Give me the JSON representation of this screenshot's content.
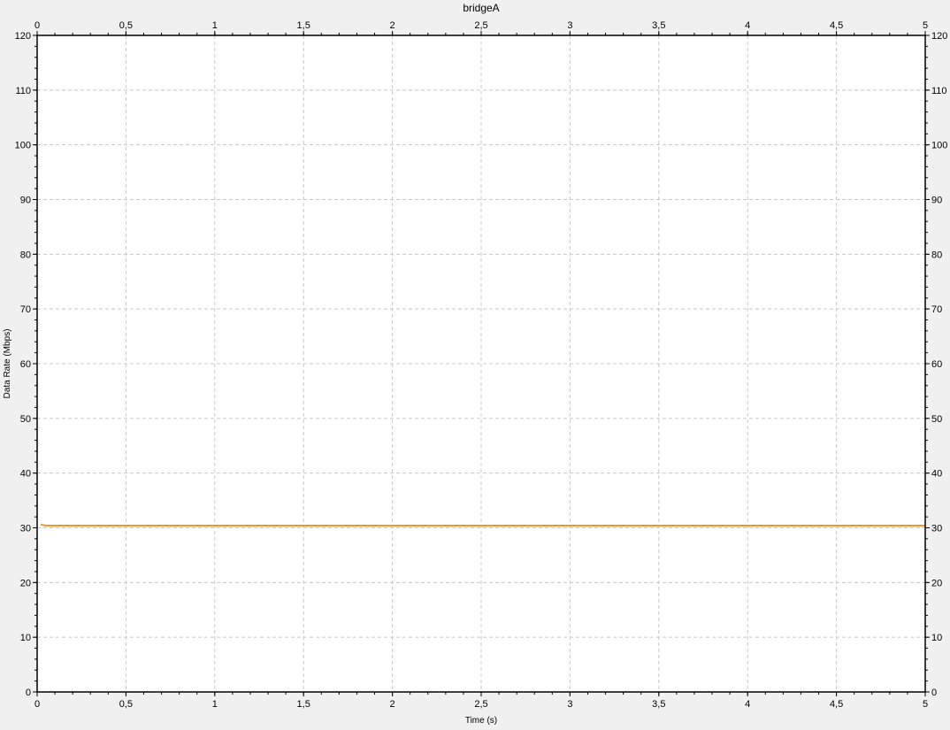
{
  "chart_data": {
    "type": "line",
    "title": "bridgeA",
    "xlabel": "Time (s)",
    "ylabel": "Data Rate (Mbps)",
    "xlim": [
      0,
      5
    ],
    "ylim": [
      0,
      120
    ],
    "x_ticks": [
      0,
      0.5,
      1,
      1.5,
      2,
      2.5,
      3,
      3.5,
      4,
      4.5,
      5
    ],
    "x_tick_labels": [
      "0",
      "0,5",
      "1",
      "1,5",
      "2",
      "2,5",
      "3",
      "3,5",
      "4",
      "4,5",
      "5"
    ],
    "y_ticks": [
      0,
      10,
      20,
      30,
      40,
      50,
      60,
      70,
      80,
      90,
      100,
      110,
      120
    ],
    "y_tick_labels": [
      "0",
      "10",
      "20",
      "30",
      "40",
      "50",
      "60",
      "70",
      "80",
      "90",
      "100",
      "110",
      "120"
    ],
    "grid": true,
    "mirror_axes": true,
    "series": [
      {
        "color": "#f0962a",
        "x": [
          0.02,
          0.05,
          0.1,
          0.5,
          1,
          1.5,
          2,
          2.5,
          3,
          3.5,
          4,
          4.5,
          5
        ],
        "y": [
          30.6,
          30.4,
          30.4,
          30.4,
          30.4,
          30.4,
          30.4,
          30.4,
          30.4,
          30.4,
          30.4,
          30.4,
          30.4
        ]
      }
    ]
  }
}
